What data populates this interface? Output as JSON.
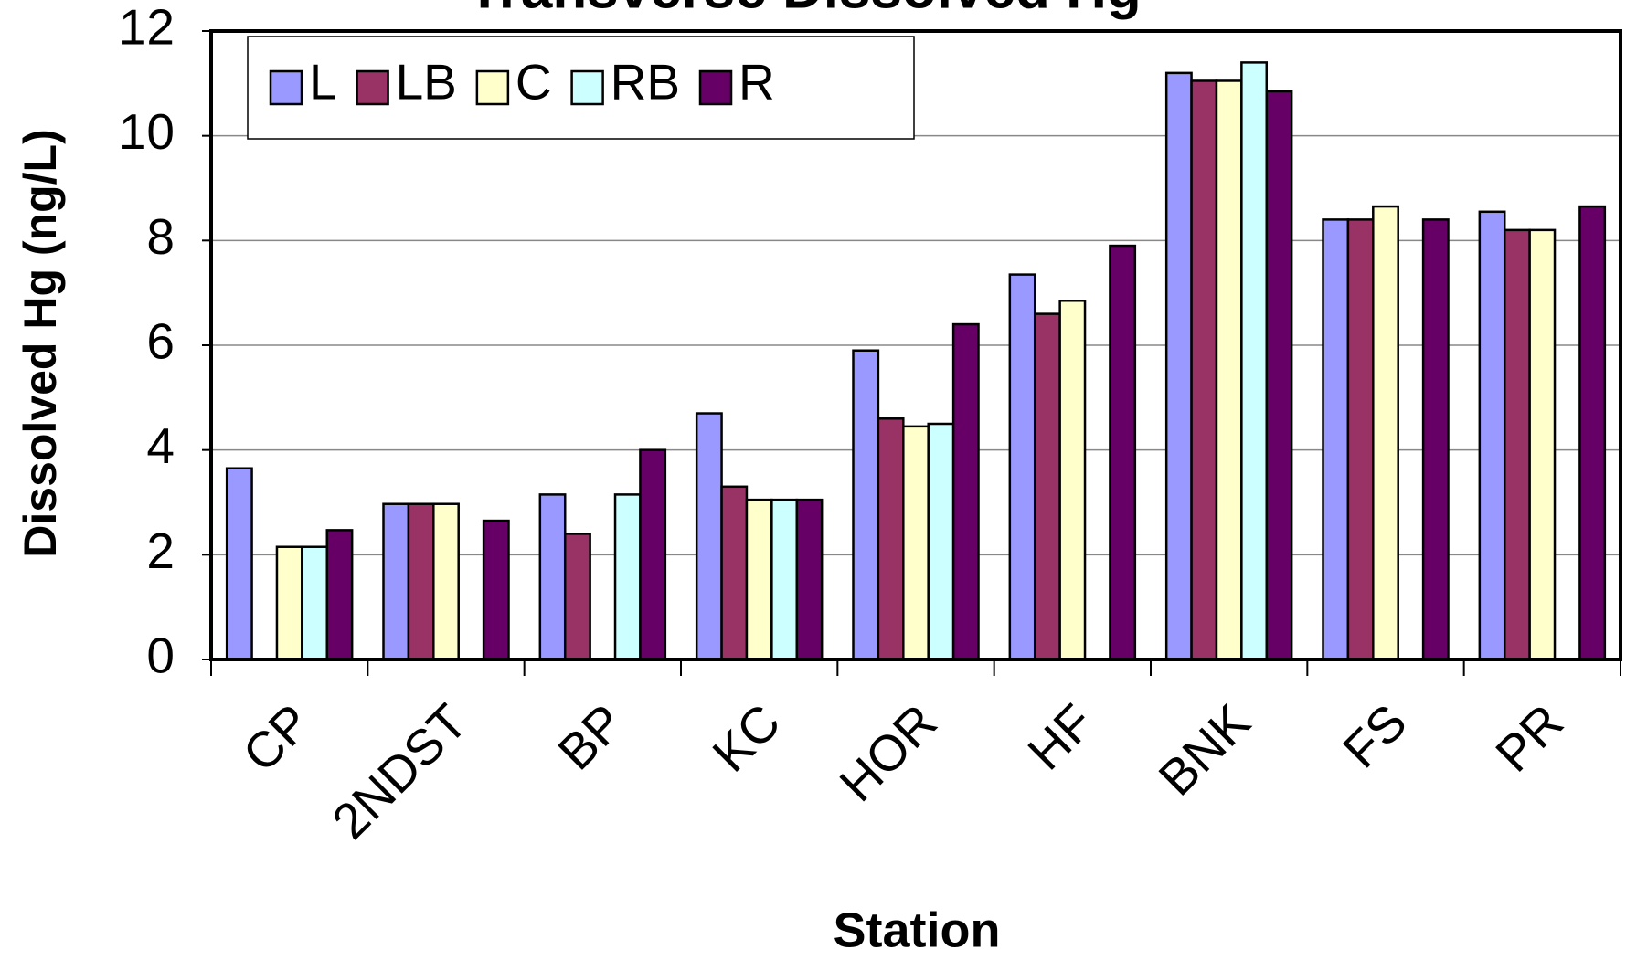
{
  "chart_data": {
    "type": "bar",
    "title": "Transverse Dissolved Hg",
    "x_label": "Station",
    "y_label": "Dissolved Hg (ng/L)",
    "categories": [
      "CP",
      "2NDST",
      "BP",
      "KC",
      "HOR",
      "HF",
      "BNK",
      "FS",
      "PR"
    ],
    "series": [
      {
        "name": "L",
        "color": "#9999ff",
        "values": [
          3.65,
          2.97,
          3.15,
          4.7,
          5.9,
          7.35,
          11.2,
          8.4,
          8.55
        ]
      },
      {
        "name": "LB",
        "color": "#993366",
        "values": [
          null,
          2.97,
          2.4,
          3.3,
          4.6,
          6.6,
          11.05,
          8.4,
          8.2
        ]
      },
      {
        "name": "C",
        "color": "#ffffcc",
        "values": [
          2.15,
          2.97,
          null,
          3.05,
          4.45,
          6.85,
          11.05,
          8.65,
          8.2
        ]
      },
      {
        "name": "RB",
        "color": "#ccffff",
        "values": [
          2.15,
          null,
          3.15,
          3.05,
          4.5,
          null,
          11.4,
          null,
          null
        ]
      },
      {
        "name": "R",
        "color": "#660066",
        "values": [
          2.47,
          2.65,
          4.0,
          3.05,
          6.4,
          7.9,
          10.85,
          8.4,
          8.65
        ]
      }
    ],
    "ylim": [
      0,
      12
    ],
    "yticks": [
      0,
      2,
      4,
      6,
      8,
      10,
      12
    ],
    "grid": true,
    "legend": "top-left"
  }
}
